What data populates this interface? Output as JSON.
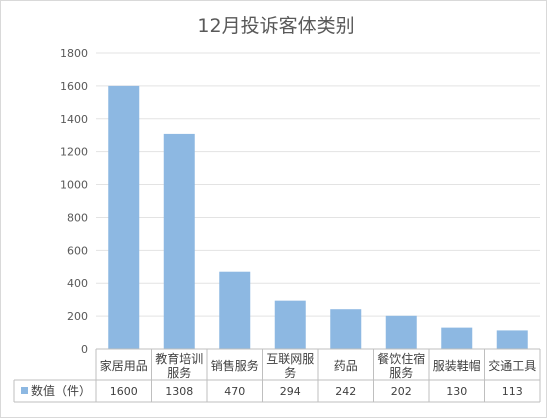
{
  "chart_data": {
    "type": "bar",
    "title": "12月投诉客体类别",
    "series": [
      {
        "name": "数值（件）",
        "values": [
          1600,
          1308,
          470,
          294,
          242,
          202,
          130,
          113
        ]
      }
    ],
    "categories": [
      [
        "家居用品"
      ],
      [
        "教育培训",
        "服务"
      ],
      [
        "销售服务"
      ],
      [
        "互联网服",
        "务"
      ],
      [
        "药品"
      ],
      [
        "餐饮住宿",
        "服务"
      ],
      [
        "服装鞋帽"
      ],
      [
        "交通工具"
      ]
    ],
    "data_table": [
      "1600",
      "1308",
      "470",
      "294",
      "242",
      "202",
      "130",
      "113"
    ],
    "yticks": [
      "0",
      "200",
      "400",
      "600",
      "800",
      "1000",
      "1200",
      "1400",
      "1600",
      "1800"
    ],
    "ylim": [
      0,
      1800
    ],
    "grid": true,
    "legend": "data-table",
    "colors": {
      "bar": "#8db8e2",
      "grid": "#e3e3e3",
      "axis": "#bfbfbf",
      "text": "#404040",
      "title": "#595959"
    }
  }
}
